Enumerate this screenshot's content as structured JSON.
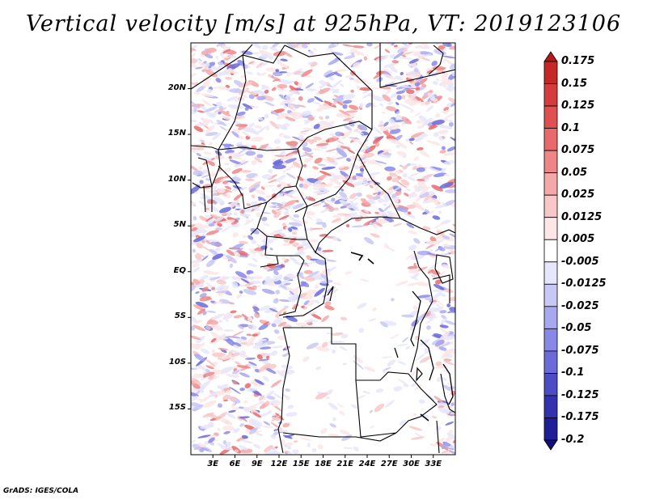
{
  "title": "Vertical velocity [m/s] at 925hPa, VT: 2019123106",
  "credit": "GrADS: IGES/COLA",
  "map": {
    "region": "Central Africa",
    "variable": "Vertical velocity",
    "units": "m/s",
    "level": "925hPa",
    "valid_time": "2019123106",
    "lon_range": [
      0,
      36
    ],
    "lat_range": [
      -20,
      25
    ],
    "lat_ticks": [
      {
        "value": 20,
        "label": "20N"
      },
      {
        "value": 15,
        "label": "15N"
      },
      {
        "value": 10,
        "label": "10N"
      },
      {
        "value": 5,
        "label": "5N"
      },
      {
        "value": 0,
        "label": "EQ"
      },
      {
        "value": -5,
        "label": "5S"
      },
      {
        "value": -10,
        "label": "10S"
      },
      {
        "value": -15,
        "label": "15S"
      }
    ],
    "lon_ticks": [
      {
        "value": 3,
        "label": "3E"
      },
      {
        "value": 6,
        "label": "6E"
      },
      {
        "value": 9,
        "label": "9E"
      },
      {
        "value": 12,
        "label": "12E"
      },
      {
        "value": 15,
        "label": "15E"
      },
      {
        "value": 18,
        "label": "18E"
      },
      {
        "value": 21,
        "label": "21E"
      },
      {
        "value": 24,
        "label": "24E"
      },
      {
        "value": 27,
        "label": "27E"
      },
      {
        "value": 30,
        "label": "30E"
      },
      {
        "value": 33,
        "label": "33E"
      }
    ]
  },
  "colorbar": {
    "labels": [
      "0.175",
      "0.15",
      "0.125",
      "0.1",
      "0.075",
      "0.05",
      "0.025",
      "0.0125",
      "0.005",
      "-0.005",
      "-0.0125",
      "-0.025",
      "-0.05",
      "-0.075",
      "-0.1",
      "-0.125",
      "-0.175",
      "-0.2"
    ],
    "colors": [
      "#b01a1a",
      "#c62828",
      "#d63c3c",
      "#e05050",
      "#e86a6a",
      "#ee8686",
      "#f4a8a8",
      "#f8c8c8",
      "#fce6e6",
      "#ffffff",
      "#e6e6fc",
      "#c8c8f6",
      "#a8a8f0",
      "#8888e6",
      "#6a6ad8",
      "#4c4cc6",
      "#3232b0",
      "#1e1e98",
      "#10107a"
    ]
  }
}
